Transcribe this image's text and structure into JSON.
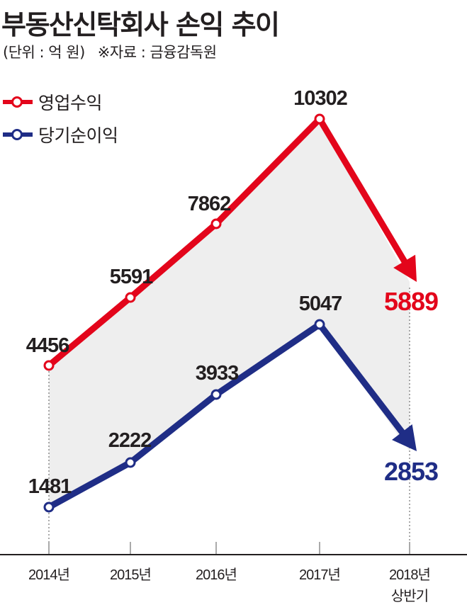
{
  "title": "부동산신탁회사 손익 추이",
  "unit": "(단위 : 억 원)",
  "source": "※자료 : 금융감독원",
  "colors": {
    "operating": "#e3051b",
    "net": "#1f2d86",
    "fill": "#eeeeee",
    "label": "#231f20"
  },
  "chart_data": {
    "type": "line",
    "categories": [
      "2014년",
      "2015년",
      "2016년",
      "2017년",
      "2018년 상반기"
    ],
    "series": [
      {
        "name": "영업수익",
        "values": [
          4456,
          5591,
          7862,
          10302,
          5889
        ]
      },
      {
        "name": "당기순이익",
        "values": [
          1481,
          2222,
          3933,
          5047,
          2853
        ]
      }
    ],
    "value_labels": {
      "operating": [
        "4456",
        "5591",
        "7862",
        "10302",
        "5889"
      ],
      "net": [
        "1481",
        "2222",
        "3933",
        "5047",
        "2853"
      ]
    },
    "legend": "top-left",
    "grid": false,
    "last_point_arrow": true
  }
}
